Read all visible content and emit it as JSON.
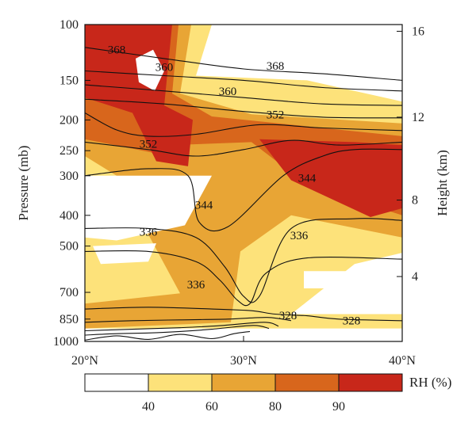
{
  "chart_data": {
    "type": "heatmap",
    "title": "",
    "xlabel": "",
    "ylabel": "Pressure (mb)",
    "y2label": "Height (km)",
    "x_ticks": [
      "20°N",
      "30°N",
      "40°N"
    ],
    "x_tick_values": [
      20,
      30,
      40
    ],
    "xlim": [
      20,
      40
    ],
    "y_ticks": [
      "100",
      "150",
      "200",
      "250",
      "300",
      "400",
      "500",
      "700",
      "850",
      "1000"
    ],
    "y_tick_values": [
      100,
      150,
      200,
      250,
      300,
      400,
      500,
      700,
      850,
      1000
    ],
    "ylim": [
      1000,
      100
    ],
    "y_scale": "log",
    "y2_ticks": [
      "4",
      "8",
      "12",
      "16"
    ],
    "y2_tick_pressures": [
      624,
      358,
      196,
      105
    ],
    "colorbar": {
      "label": "RH (%)",
      "tick_labels": [
        "40",
        "60",
        "80",
        "90"
      ],
      "bins": [
        {
          "range": "<40",
          "color": "#ffffff"
        },
        {
          "range": "40-60",
          "color": "#fde27a"
        },
        {
          "range": "60-80",
          "color": "#e8a535"
        },
        {
          "range": "80-90",
          "color": "#d8661c"
        },
        {
          "range": ">90",
          "color": "#c8271a"
        }
      ]
    },
    "rh_regions": [
      {
        "level": 1,
        "color": "#fde27a",
        "poly": [
          [
            20,
            100
          ],
          [
            28,
            100
          ],
          [
            27,
            145
          ],
          [
            34,
            150
          ],
          [
            40,
            175
          ],
          [
            40,
            525
          ],
          [
            37,
            570
          ],
          [
            33,
            820
          ],
          [
            40,
            820
          ],
          [
            40,
            910
          ],
          [
            20,
            910
          ]
        ]
      },
      {
        "level": 2,
        "color": "#e8a535",
        "poly": [
          [
            20,
            100
          ],
          [
            26.7,
            100
          ],
          [
            26,
            165
          ],
          [
            30.5,
            192
          ],
          [
            40,
            205
          ],
          [
            40,
            470
          ],
          [
            33,
            400
          ],
          [
            29.8,
            520
          ],
          [
            29.2,
            870
          ],
          [
            20,
            910
          ],
          [
            20,
            760
          ],
          [
            26,
            705
          ],
          [
            22,
            300
          ],
          [
            20,
            260
          ]
        ]
      },
      {
        "level": 3,
        "color": "#d8661c",
        "poly": [
          [
            20,
            100
          ],
          [
            25.9,
            100
          ],
          [
            25.5,
            165
          ],
          [
            28,
            195
          ],
          [
            40,
            225
          ],
          [
            40,
            400
          ],
          [
            34,
            320
          ],
          [
            30.5,
            235
          ],
          [
            25.5,
            240
          ],
          [
            24.5,
            255
          ],
          [
            20,
            230
          ]
        ]
      },
      {
        "level": 4,
        "color": "#c8271a",
        "poly": [
          [
            20,
            100
          ],
          [
            25.5,
            100
          ],
          [
            25,
            180
          ],
          [
            26.8,
            200
          ],
          [
            26.5,
            280
          ],
          [
            24.5,
            270
          ],
          [
            23,
            190
          ],
          [
            20,
            170
          ]
        ]
      },
      {
        "level": 4,
        "color": "#c8271a",
        "poly": [
          [
            31,
            230
          ],
          [
            37,
            235
          ],
          [
            40,
            240
          ],
          [
            40,
            380
          ],
          [
            38,
            405
          ],
          [
            33,
            310
          ]
        ]
      }
    ],
    "rh_holes": [
      {
        "poly": [
          [
            23.2,
            128
          ],
          [
            24.3,
            120
          ],
          [
            25,
            140
          ],
          [
            24.4,
            162
          ],
          [
            23.4,
            152
          ]
        ]
      },
      {
        "poly": [
          [
            20,
            300
          ],
          [
            28,
            300
          ],
          [
            26.3,
            430
          ],
          [
            22,
            480
          ],
          [
            20,
            470
          ]
        ]
      },
      {
        "poly": [
          [
            20.5,
            500
          ],
          [
            24.5,
            490
          ],
          [
            24,
            560
          ],
          [
            21,
            570
          ]
        ]
      },
      {
        "poly": [
          [
            33.8,
            600
          ],
          [
            36.8,
            600
          ],
          [
            36.8,
            680
          ],
          [
            33.8,
            680
          ]
        ]
      }
    ],
    "theta_contours": [
      {
        "label": "368",
        "points": [
          [
            20,
            118
          ],
          [
            25,
            128
          ],
          [
            30,
            138
          ],
          [
            35,
            143
          ],
          [
            40,
            150
          ]
        ]
      },
      {
        "label": "",
        "points": [
          [
            20,
            140
          ],
          [
            25,
            145
          ],
          [
            30,
            150
          ],
          [
            35,
            158
          ],
          [
            40,
            162
          ]
        ]
      },
      {
        "label": "360",
        "points": [
          [
            20,
            155
          ],
          [
            25,
            162
          ],
          [
            30,
            170
          ],
          [
            35,
            178
          ],
          [
            40,
            180
          ]
        ]
      },
      {
        "label": "",
        "points": [
          [
            20,
            172
          ],
          [
            25,
            178
          ],
          [
            30,
            188
          ],
          [
            35,
            196
          ],
          [
            40,
            197
          ]
        ]
      },
      {
        "label": "352",
        "points": [
          [
            20,
            190
          ],
          [
            22,
            215
          ],
          [
            24,
            225
          ],
          [
            27,
            222
          ],
          [
            31,
            207
          ],
          [
            35,
            212
          ],
          [
            40,
            216
          ]
        ]
      },
      {
        "label": "",
        "points": [
          [
            20,
            235
          ],
          [
            24,
            248
          ],
          [
            27,
            260
          ],
          [
            30,
            248
          ],
          [
            33,
            232
          ],
          [
            36,
            240
          ],
          [
            40,
            235
          ]
        ]
      },
      {
        "label": "344",
        "points": [
          [
            20,
            300
          ],
          [
            24,
            285
          ],
          [
            26.5,
            300
          ],
          [
            27.2,
            420
          ],
          [
            29,
            435
          ],
          [
            32.5,
            300
          ],
          [
            35,
            260
          ],
          [
            37,
            248
          ],
          [
            40,
            248
          ]
        ]
      },
      {
        "label": "336",
        "points": [
          [
            20,
            440
          ],
          [
            24,
            440
          ],
          [
            27,
            470
          ],
          [
            28.8,
            580
          ],
          [
            30,
            720
          ],
          [
            31,
            720
          ],
          [
            33,
            440
          ],
          [
            37,
            410
          ],
          [
            40,
            415
          ]
        ]
      },
      {
        "label": "336",
        "points": [
          [
            20,
            520
          ],
          [
            24,
            520
          ],
          [
            27,
            560
          ],
          [
            28.5,
            640
          ],
          [
            29.6,
            740
          ],
          [
            30.4,
            760
          ],
          [
            31.4,
            610
          ],
          [
            34,
            545
          ],
          [
            40,
            550
          ]
        ]
      },
      {
        "label": "328",
        "points": [
          [
            20,
            790
          ],
          [
            24,
            780
          ],
          [
            28,
            790
          ],
          [
            30.5,
            800
          ],
          [
            32,
            820
          ],
          [
            34,
            830
          ],
          [
            36,
            850
          ],
          [
            40,
            860
          ]
        ]
      },
      {
        "label": "",
        "points": [
          [
            20,
            870
          ],
          [
            23,
            860
          ],
          [
            26,
            855
          ],
          [
            29,
            850
          ],
          [
            31.5,
            840
          ],
          [
            33,
            860
          ]
        ]
      },
      {
        "label": "",
        "points": [
          [
            20,
            925
          ],
          [
            23,
            915
          ],
          [
            26,
            905
          ],
          [
            28.5,
            892
          ],
          [
            31.3,
            870
          ],
          [
            32.2,
            895
          ]
        ]
      },
      {
        "label": "",
        "points": [
          [
            20,
            955
          ],
          [
            22,
            945
          ],
          [
            24,
            940
          ],
          [
            26,
            930
          ],
          [
            28,
            915
          ],
          [
            30.6,
            890
          ],
          [
            31.6,
            910
          ]
        ]
      },
      {
        "label": "",
        "points": [
          [
            20,
            990
          ],
          [
            22,
            960
          ],
          [
            24,
            985
          ],
          [
            26,
            950
          ],
          [
            28,
            980
          ],
          [
            29.4,
            945
          ],
          [
            30.4,
            930
          ]
        ]
      }
    ],
    "theta_label_positions": [
      {
        "text": "368",
        "x": 22,
        "p": 120
      },
      {
        "text": "360",
        "x": 25,
        "p": 136
      },
      {
        "text": "360",
        "x": 29,
        "p": 162
      },
      {
        "text": "368",
        "x": 32,
        "p": 135
      },
      {
        "text": "352",
        "x": 32,
        "p": 192
      },
      {
        "text": "352",
        "x": 24,
        "p": 238
      },
      {
        "text": "344",
        "x": 34,
        "p": 305
      },
      {
        "text": "344",
        "x": 27.5,
        "p": 370
      },
      {
        "text": "336",
        "x": 24,
        "p": 450
      },
      {
        "text": "336",
        "x": 33.5,
        "p": 462
      },
      {
        "text": "336",
        "x": 27,
        "p": 660
      },
      {
        "text": "328",
        "x": 32.8,
        "p": 828
      },
      {
        "text": "328",
        "x": 36.8,
        "p": 858
      }
    ]
  }
}
